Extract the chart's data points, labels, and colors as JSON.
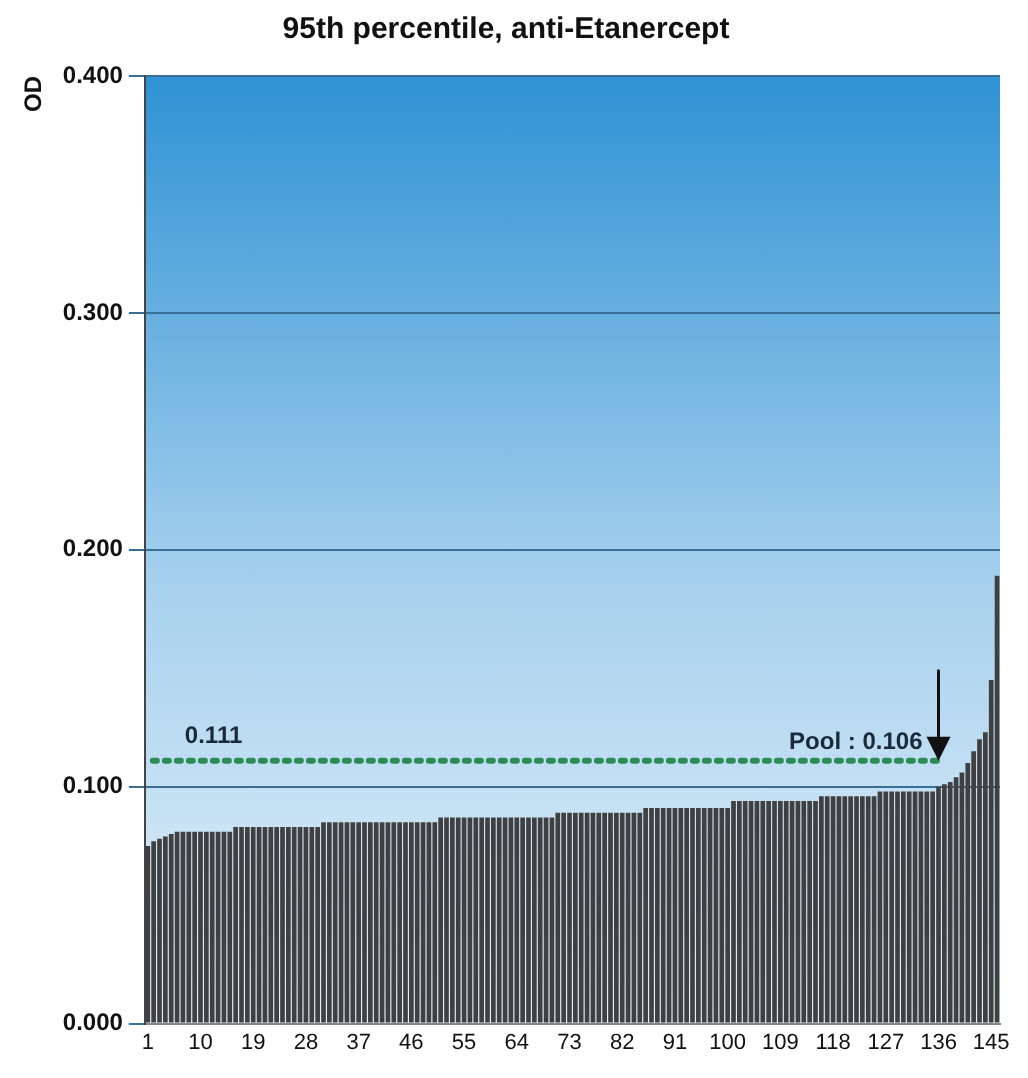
{
  "chart_data": {
    "type": "bar",
    "title": "95th percentile, anti-Etanercept",
    "ylabel": "OD",
    "categories": [
      "1",
      null,
      null,
      null,
      null,
      null,
      null,
      null,
      null,
      "10",
      null,
      null,
      null,
      null,
      null,
      null,
      null,
      null,
      "19",
      null,
      null,
      null,
      null,
      null,
      null,
      null,
      null,
      "28",
      null,
      null,
      null,
      null,
      null,
      null,
      null,
      null,
      "37",
      null,
      null,
      null,
      null,
      null,
      null,
      null,
      null,
      "46",
      null,
      null,
      null,
      null,
      null,
      null,
      null,
      null,
      "55",
      null,
      null,
      null,
      null,
      null,
      null,
      null,
      null,
      "64",
      null,
      null,
      null,
      null,
      null,
      null,
      null,
      null,
      "73",
      null,
      null,
      null,
      null,
      null,
      null,
      null,
      null,
      "82",
      null,
      null,
      null,
      null,
      null,
      null,
      null,
      null,
      "91",
      null,
      null,
      null,
      null,
      null,
      null,
      null,
      null,
      "100",
      null,
      null,
      null,
      null,
      null,
      null,
      null,
      null,
      "109",
      null,
      null,
      null,
      null,
      null,
      null,
      null,
      null,
      "118",
      null,
      null,
      null,
      null,
      null,
      null,
      null,
      null,
      "127",
      null,
      null,
      null,
      null,
      null,
      null,
      null,
      null,
      "136",
      null,
      null,
      null,
      null,
      null,
      null,
      null,
      null,
      "145",
      null
    ],
    "values": [
      0.075,
      0.077,
      0.078,
      0.079,
      0.08,
      0.081,
      0.081,
      0.081,
      0.081,
      0.081,
      0.081,
      0.081,
      0.081,
      0.081,
      0.081,
      0.083,
      0.083,
      0.083,
      0.083,
      0.083,
      0.083,
      0.083,
      0.083,
      0.083,
      0.083,
      0.083,
      0.083,
      0.083,
      0.083,
      0.083,
      0.085,
      0.085,
      0.085,
      0.085,
      0.085,
      0.085,
      0.085,
      0.085,
      0.085,
      0.085,
      0.085,
      0.085,
      0.085,
      0.085,
      0.085,
      0.085,
      0.085,
      0.085,
      0.085,
      0.085,
      0.087,
      0.087,
      0.087,
      0.087,
      0.087,
      0.087,
      0.087,
      0.087,
      0.087,
      0.087,
      0.087,
      0.087,
      0.087,
      0.087,
      0.087,
      0.087,
      0.087,
      0.087,
      0.087,
      0.087,
      0.089,
      0.089,
      0.089,
      0.089,
      0.089,
      0.089,
      0.089,
      0.089,
      0.089,
      0.089,
      0.089,
      0.089,
      0.089,
      0.089,
      0.089,
      0.091,
      0.091,
      0.091,
      0.091,
      0.091,
      0.091,
      0.091,
      0.091,
      0.091,
      0.091,
      0.091,
      0.091,
      0.091,
      0.091,
      0.091,
      0.094,
      0.094,
      0.094,
      0.094,
      0.094,
      0.094,
      0.094,
      0.094,
      0.094,
      0.094,
      0.094,
      0.094,
      0.094,
      0.094,
      0.094,
      0.096,
      0.096,
      0.096,
      0.096,
      0.096,
      0.096,
      0.096,
      0.096,
      0.096,
      0.096,
      0.098,
      0.098,
      0.098,
      0.098,
      0.098,
      0.098,
      0.098,
      0.098,
      0.098,
      0.098,
      0.1,
      0.101,
      0.102,
      0.104,
      0.106,
      0.11,
      0.115,
      0.12,
      0.123,
      0.145,
      0.189
    ],
    "color": "#404040",
    "ylim": [
      0,
      0.4
    ],
    "yticks": [
      {
        "value": 0,
        "label": "0.000"
      },
      {
        "value": 0.1,
        "label": "0.100"
      },
      {
        "value": 0.2,
        "label": "0.200"
      },
      {
        "value": 0.3,
        "label": "0.300"
      },
      {
        "value": 0.4,
        "label": "0.400"
      }
    ],
    "grid": "y",
    "ref_lines": [
      {
        "axis": "y",
        "value": 0.111,
        "label": "0.111",
        "color": "#2e8b57",
        "line_style": "dotted"
      }
    ],
    "annotations": [
      {
        "text": "Pool : 0.106",
        "x": "136",
        "y": 0.111
      }
    ]
  }
}
